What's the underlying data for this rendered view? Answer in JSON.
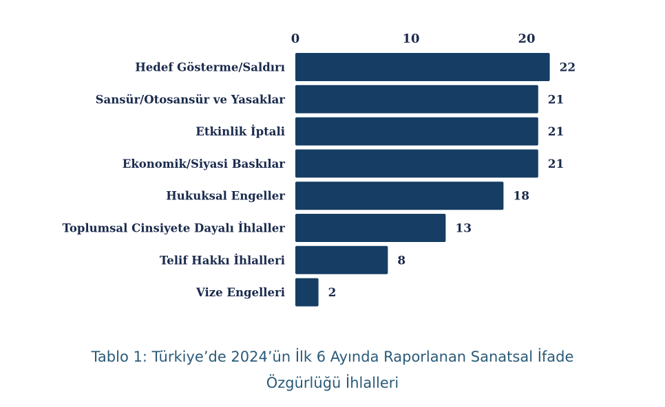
{
  "colors": {
    "bar": "#163d63",
    "text": "#1a2a4c",
    "caption": "#2a5a78"
  },
  "chart_data": {
    "type": "bar",
    "orientation": "horizontal",
    "categories": [
      "Hedef Gösterme/Saldırı",
      "Sansür/Otosansür ve Yasaklar",
      "Etkinlik İptali",
      "Ekonomik/Siyasi Baskılar",
      "Hukuksal Engeller",
      "Toplumsal Cinsiyete Dayalı İhlaller",
      "Telif Hakkı İhlalleri",
      "Vize Engelleri"
    ],
    "values": [
      22,
      21,
      21,
      21,
      18,
      13,
      8,
      2
    ],
    "xlim": [
      0,
      22
    ],
    "xticks": [
      0,
      10,
      20
    ],
    "axis_position": "top",
    "grid": false,
    "data_labels": true
  },
  "caption": {
    "line1": "Tablo 1: Türkiye’de 2024’ün İlk 6 Ayında Raporlanan Sanatsal İfade",
    "line2": "Özgürlüğü İhlalleri"
  }
}
